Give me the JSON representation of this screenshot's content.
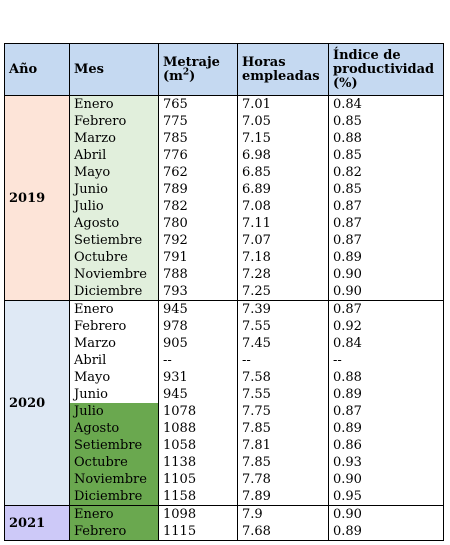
{
  "headers": {
    "year": "Año",
    "month": "Mes",
    "metraje": "Metraje",
    "metraje_unit_base": "(m",
    "metraje_unit_sup": "2",
    "metraje_unit_close": ")",
    "hours": "Horas empleadas",
    "index": "Índice de productividad (%)"
  },
  "colors": {
    "header": "#c5d9f1",
    "year_2019": "#fde4d8",
    "year_2020": "#dfe9f5",
    "year_2021": "#cdc9f8",
    "month_light": "#e1efdc",
    "month_dark": "#6aa84f"
  },
  "groups": [
    {
      "year": "2019",
      "year_color": "#fde4d8",
      "rows": [
        {
          "mes": "Enero",
          "metraje": "765",
          "horas": "7.01",
          "indice": "0.84",
          "shade": "#e1efdc"
        },
        {
          "mes": "Febrero",
          "metraje": "775",
          "horas": "7.05",
          "indice": "0.85",
          "shade": "#e1efdc"
        },
        {
          "mes": "Marzo",
          "metraje": "785",
          "horas": "7.15",
          "indice": "0.88",
          "shade": "#e1efdc"
        },
        {
          "mes": "Abril",
          "metraje": "776",
          "horas": "6.98",
          "indice": "0.85",
          "shade": "#e1efdc"
        },
        {
          "mes": "Mayo",
          "metraje": "762",
          "horas": "6.85",
          "indice": "0.82",
          "shade": "#e1efdc"
        },
        {
          "mes": "Junio",
          "metraje": "789",
          "horas": "6.89",
          "indice": "0.85",
          "shade": "#e1efdc"
        },
        {
          "mes": "Julio",
          "metraje": "782",
          "horas": "7.08",
          "indice": "0.87",
          "shade": "#e1efdc"
        },
        {
          "mes": "Agosto",
          "metraje": "780",
          "horas": "7.11",
          "indice": "0.87",
          "shade": "#e1efdc"
        },
        {
          "mes": "Setiembre",
          "metraje": "792",
          "horas": "7.07",
          "indice": "0.87",
          "shade": "#e1efdc"
        },
        {
          "mes": "Octubre",
          "metraje": "791",
          "horas": "7.18",
          "indice": "0.89",
          "shade": "#e1efdc"
        },
        {
          "mes": "Noviembre",
          "metraje": "788",
          "horas": "7.28",
          "indice": "0.90",
          "shade": "#e1efdc"
        },
        {
          "mes": "Diciembre",
          "metraje": "793",
          "horas": "7.25",
          "indice": "0.90",
          "shade": "#e1efdc"
        }
      ]
    },
    {
      "year": "2020",
      "year_color": "#dfe9f5",
      "rows": [
        {
          "mes": "Enero",
          "metraje": "945",
          "horas": "7.39",
          "indice": "0.87",
          "shade": ""
        },
        {
          "mes": "Febrero",
          "metraje": "978",
          "horas": "7.55",
          "indice": "0.92",
          "shade": ""
        },
        {
          "mes": "Marzo",
          "metraje": "905",
          "horas": "7.45",
          "indice": "0.84",
          "shade": ""
        },
        {
          "mes": "Abril",
          "metraje": "--",
          "horas": "--",
          "indice": "--",
          "shade": ""
        },
        {
          "mes": "Mayo",
          "metraje": "931",
          "horas": "7.58",
          "indice": "0.88",
          "shade": ""
        },
        {
          "mes": "Junio",
          "metraje": "945",
          "horas": "7.55",
          "indice": "0.89",
          "shade": ""
        },
        {
          "mes": "Julio",
          "metraje": "1078",
          "horas": "7.75",
          "indice": "0.87",
          "shade": "#6aa84f"
        },
        {
          "mes": "Agosto",
          "metraje": "1088",
          "horas": "7.85",
          "indice": "0.89",
          "shade": "#6aa84f"
        },
        {
          "mes": "Setiembre",
          "metraje": "1058",
          "horas": "7.81",
          "indice": "0.86",
          "shade": "#6aa84f"
        },
        {
          "mes": "Octubre",
          "metraje": "1138",
          "horas": "7.85",
          "indice": "0.93",
          "shade": "#6aa84f"
        },
        {
          "mes": "Noviembre",
          "metraje": "1105",
          "horas": "7.78",
          "indice": "0.90",
          "shade": "#6aa84f"
        },
        {
          "mes": "Diciembre",
          "metraje": "1158",
          "horas": "7.89",
          "indice": "0.95",
          "shade": "#6aa84f"
        }
      ]
    },
    {
      "year": "2021",
      "year_color": "#cdc9f8",
      "rows": [
        {
          "mes": "Enero",
          "metraje": "1098",
          "horas": "7.9",
          "indice": "0.90",
          "shade": "#6aa84f"
        },
        {
          "mes": "Febrero",
          "metraje": "1115",
          "horas": "7.68",
          "indice": "0.89",
          "shade": "#6aa84f"
        }
      ]
    }
  ]
}
